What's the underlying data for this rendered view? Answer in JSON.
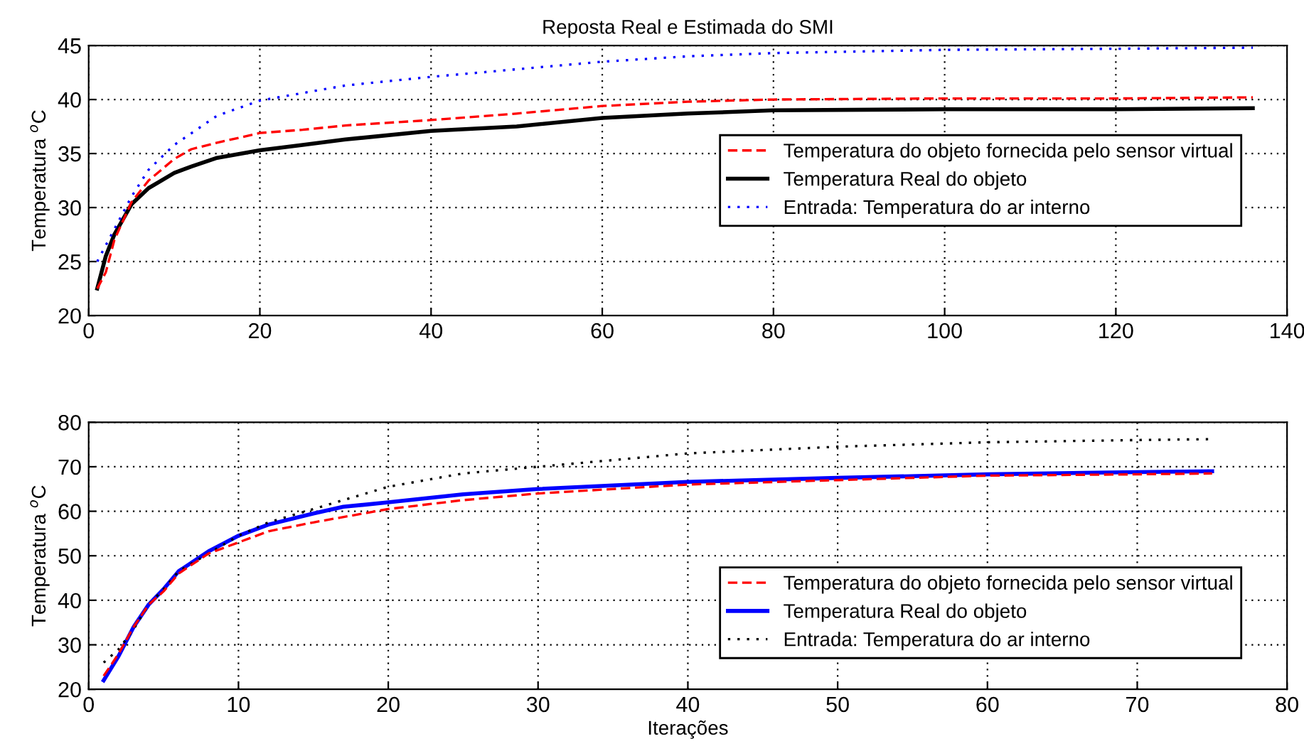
{
  "chart_data": [
    {
      "type": "line",
      "title": "Reposta Real e Estimada do SMI",
      "ylabel": "Temperatura $^{o}$C",
      "xlim": [
        0,
        140
      ],
      "ylim": [
        20,
        45
      ],
      "xticks": [
        0,
        20,
        40,
        60,
        80,
        100,
        120,
        140
      ],
      "yticks": [
        20,
        25,
        30,
        35,
        40,
        45
      ],
      "grid": true,
      "legend": "right",
      "series": [
        {
          "name": "Temperatura do objeto fornecida pelo sensor virtual",
          "color": "#ff0000",
          "line_style": "dashed",
          "x": [
            1,
            2,
            3,
            5,
            7,
            10,
            12,
            15,
            20,
            25,
            30,
            40,
            50,
            60,
            70,
            80,
            100,
            120,
            136
          ],
          "values": [
            22.5,
            24,
            27,
            30.5,
            32.5,
            34.5,
            35.4,
            36,
            36.9,
            37.2,
            37.6,
            38.1,
            38.7,
            39.4,
            39.8,
            40,
            40.1,
            40.1,
            40.2
          ]
        },
        {
          "name": "Temperatura Real do objeto",
          "color": "#000000",
          "line_style": "solid",
          "x": [
            1,
            2,
            3,
            5,
            7,
            10,
            12,
            15,
            20,
            25,
            30,
            40,
            50,
            60,
            70,
            80,
            100,
            120,
            136
          ],
          "values": [
            22.5,
            25.5,
            27.5,
            30.3,
            31.8,
            33.2,
            33.8,
            34.6,
            35.3,
            35.8,
            36.3,
            37.1,
            37.5,
            38.3,
            38.7,
            39,
            39.1,
            39.1,
            39.2
          ]
        },
        {
          "name": "Entrada: Temperatura do ar interno",
          "color": "#0000ff",
          "line_style": "dotted",
          "x": [
            1,
            3,
            5,
            7,
            10,
            15,
            20,
            25,
            30,
            40,
            50,
            60,
            70,
            80,
            100,
            120,
            136
          ],
          "values": [
            25,
            28,
            31,
            33.5,
            35.8,
            38.5,
            39.9,
            40.6,
            41.3,
            42.1,
            42.8,
            43.5,
            44,
            44.3,
            44.6,
            44.7,
            44.8
          ]
        }
      ]
    },
    {
      "type": "line",
      "xlabel": "Iterações",
      "ylabel": "Temperatura $^{o}$C",
      "xlim": [
        0,
        80
      ],
      "ylim": [
        20,
        80
      ],
      "xticks": [
        0,
        10,
        20,
        30,
        40,
        50,
        60,
        70,
        80
      ],
      "yticks": [
        20,
        30,
        40,
        50,
        60,
        70,
        80
      ],
      "grid": true,
      "legend": "bottom right",
      "series": [
        {
          "name": "Temperatura do objeto fornecida pelo sensor virtual",
          "color": "#ff0000",
          "line_style": "dashed",
          "x": [
            1,
            2,
            3,
            4,
            5,
            6,
            8,
            10,
            12,
            15,
            20,
            25,
            30,
            40,
            50,
            60,
            70,
            75
          ],
          "values": [
            23,
            28,
            34,
            39,
            42,
            46,
            50.5,
            53,
            55.5,
            57.5,
            60.5,
            62.5,
            64,
            66,
            67,
            68,
            68.3,
            68.5
          ]
        },
        {
          "name": "Temperatura Real do objeto",
          "color": "#0000ff",
          "line_style": "solid",
          "x": [
            1,
            2,
            3,
            4,
            5,
            6,
            8,
            10,
            12,
            15,
            17,
            20,
            25,
            30,
            40,
            50,
            60,
            70,
            75
          ],
          "values": [
            22,
            27.5,
            34,
            39,
            42.5,
            46.5,
            51,
            54.5,
            57,
            59.5,
            61,
            62,
            63.8,
            65,
            66.6,
            67.5,
            68.3,
            68.8,
            69
          ]
        },
        {
          "name": "Entrada: Temperatura do ar interno",
          "color": "#000000",
          "line_style": "dotted",
          "x": [
            1,
            2,
            3,
            4,
            5,
            6,
            8,
            10,
            12,
            15,
            20,
            25,
            30,
            35,
            40,
            50,
            60,
            70,
            75
          ],
          "values": [
            26,
            29,
            33.5,
            39,
            42.5,
            46.5,
            50.5,
            54.5,
            57.5,
            60.5,
            65.5,
            68.5,
            70,
            71.5,
            73,
            74.5,
            75.5,
            76,
            76.2
          ]
        }
      ]
    }
  ]
}
